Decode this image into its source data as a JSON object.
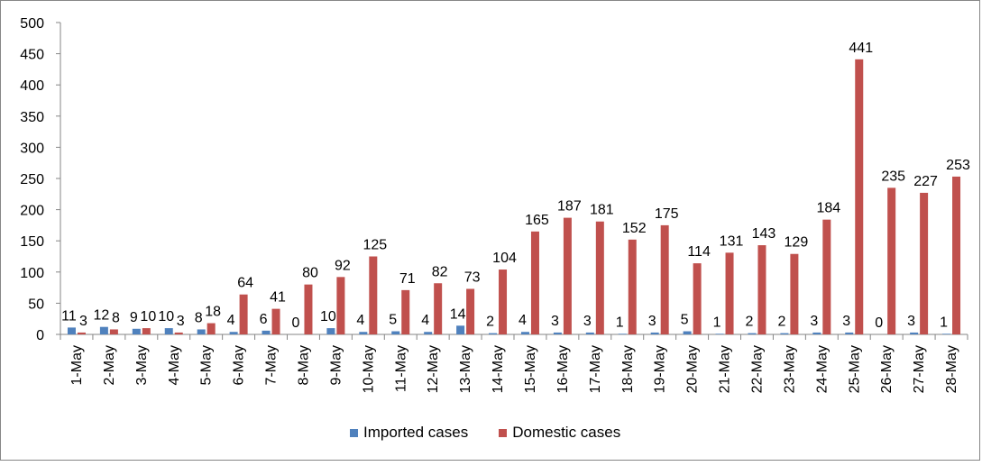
{
  "chart_data": {
    "type": "bar",
    "categories": [
      "1-May",
      "2-May",
      "3-May",
      "4-May",
      "5-May",
      "6-May",
      "7-May",
      "8-May",
      "9-May",
      "10-May",
      "11-May",
      "12-May",
      "13-May",
      "14-May",
      "15-May",
      "16-May",
      "17-May",
      "18-May",
      "19-May",
      "20-May",
      "21-May",
      "22-May",
      "23-May",
      "24-May",
      "25-May",
      "26-May",
      "27-May",
      "28-May"
    ],
    "series": [
      {
        "name": "Imported cases",
        "color": "#4F81BD",
        "values": [
          11,
          12,
          9,
          10,
          8,
          4,
          6,
          0,
          10,
          4,
          5,
          4,
          14,
          2,
          4,
          3,
          3,
          1,
          3,
          5,
          1,
          2,
          2,
          3,
          3,
          0,
          3,
          1
        ]
      },
      {
        "name": "Domestic cases",
        "color": "#C0504D",
        "values": [
          3,
          8,
          10,
          3,
          18,
          64,
          41,
          80,
          92,
          125,
          71,
          82,
          73,
          104,
          165,
          187,
          181,
          152,
          175,
          114,
          131,
          143,
          129,
          184,
          441,
          235,
          227,
          253
        ]
      }
    ],
    "ylim": [
      0,
      500
    ],
    "yticks": [
      0,
      50,
      100,
      150,
      200,
      250,
      300,
      350,
      400,
      450,
      500
    ],
    "grid": false,
    "legend_position": "bottom"
  }
}
